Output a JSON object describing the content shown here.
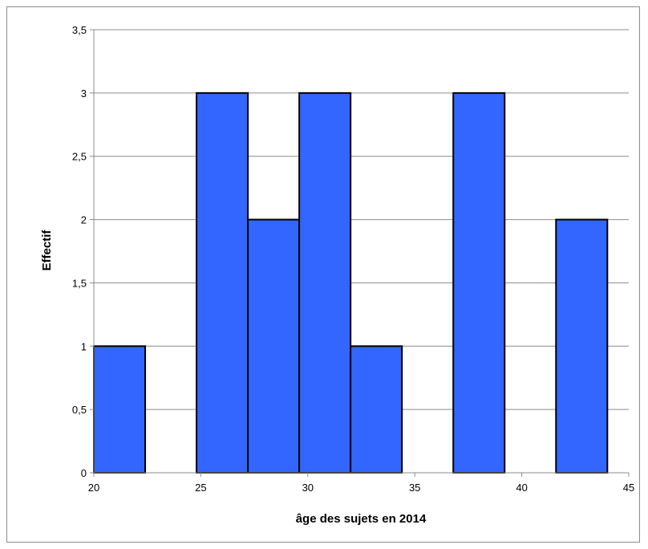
{
  "chart_data": {
    "type": "bar",
    "title": "",
    "xlabel": "âge des sujets en 2014",
    "ylabel": "Effectif",
    "xlim": [
      20,
      45
    ],
    "ylim": [
      0,
      3.5
    ],
    "x_ticks": [
      20,
      25,
      30,
      35,
      40,
      45
    ],
    "x_tick_labels": [
      "20",
      "25",
      "30",
      "35",
      "40",
      "45"
    ],
    "y_ticks": [
      0,
      0.5,
      1,
      1.5,
      2,
      2.5,
      3,
      3.5
    ],
    "y_tick_labels": [
      "0",
      "0,5",
      "1",
      "1,5",
      "2",
      "2,5",
      "3",
      "3,5"
    ],
    "bins": [
      {
        "start": 20.0,
        "end": 22.4,
        "count": 1
      },
      {
        "start": 24.8,
        "end": 27.2,
        "count": 3
      },
      {
        "start": 27.2,
        "end": 29.6,
        "count": 2
      },
      {
        "start": 29.6,
        "end": 32.0,
        "count": 3
      },
      {
        "start": 32.0,
        "end": 34.4,
        "count": 1
      },
      {
        "start": 36.8,
        "end": 39.2,
        "count": 3
      },
      {
        "start": 41.6,
        "end": 44.0,
        "count": 2
      }
    ],
    "grid": {
      "horizontal": true,
      "vertical": false
    },
    "legend": "none",
    "bar_color": "#3366ff",
    "bar_edge_color": "#000000"
  }
}
